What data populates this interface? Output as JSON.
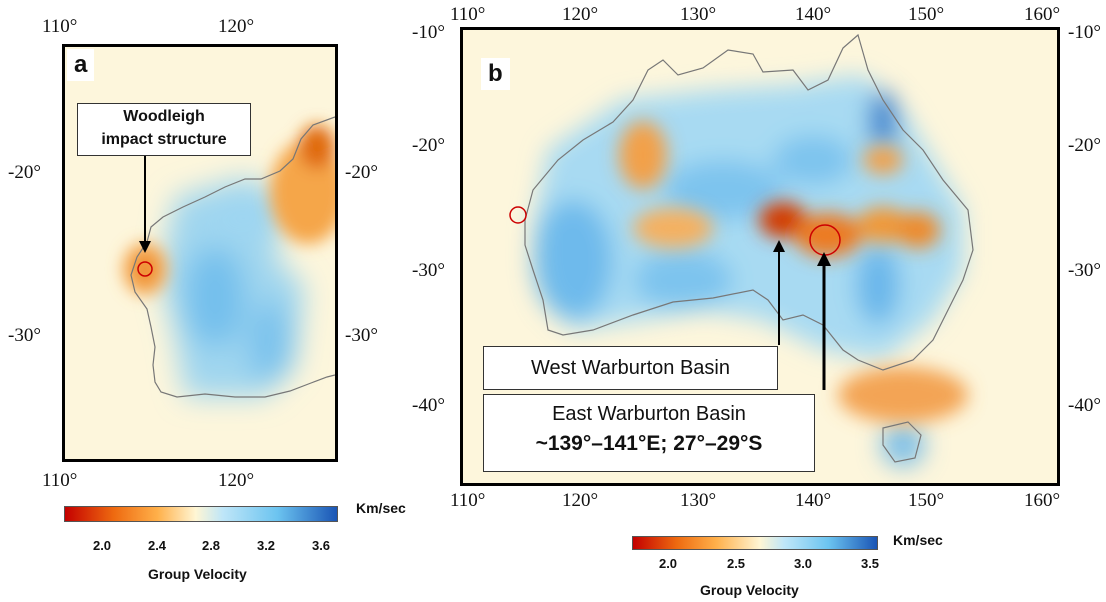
{
  "panel_a": {
    "letter": "a",
    "top_ticks": [
      "110°",
      "120°"
    ],
    "bottom_ticks": [
      "110°",
      "120°"
    ],
    "left_ticks": [
      "-20°",
      "-30°"
    ],
    "right_ticks": [
      "-20°",
      "-30°"
    ],
    "callout": {
      "line1": "Woodleigh",
      "line2": "impact structure"
    },
    "colorbar": {
      "unit": "Km/sec",
      "title": "Group Velocity",
      "ticks": [
        "2.0",
        "2.4",
        "2.8",
        "3.2",
        "3.6"
      ],
      "range": [
        1.75,
        3.75
      ],
      "colors": [
        "#c40000",
        "#ff9a2e",
        "#fff4cc",
        "#6cc4f0",
        "#1a55b5"
      ]
    }
  },
  "panel_b": {
    "letter": "b",
    "top_ticks": [
      "110°",
      "120°",
      "130°",
      "140°",
      "150°",
      "160°"
    ],
    "bottom_ticks": [
      "110°",
      "120°",
      "130°",
      "140°",
      "150°",
      "160°"
    ],
    "left_ticks": [
      "-10°",
      "-20°",
      "-30°",
      "-40°"
    ],
    "right_ticks": [
      "-10°",
      "-20°",
      "-30°",
      "-40°"
    ],
    "callout_west": "West Warburton Basin",
    "callout_east": {
      "line1": "East Warburton Basin",
      "line2": "~139°–141°E; 27°–29°S"
    },
    "colorbar": {
      "unit": "Km/sec",
      "title": "Group Velocity",
      "ticks": [
        "2.0",
        "2.5",
        "3.0",
        "3.5"
      ],
      "range": [
        1.75,
        3.55
      ],
      "colors": [
        "#c40000",
        "#ff9a2e",
        "#fff4cc",
        "#6cc4f0",
        "#1a55b5"
      ]
    }
  },
  "colors": {
    "background": "#fdf6dc",
    "slow": "#d23a00",
    "fast": "#4aa8e6",
    "marker": "#cc0000"
  }
}
